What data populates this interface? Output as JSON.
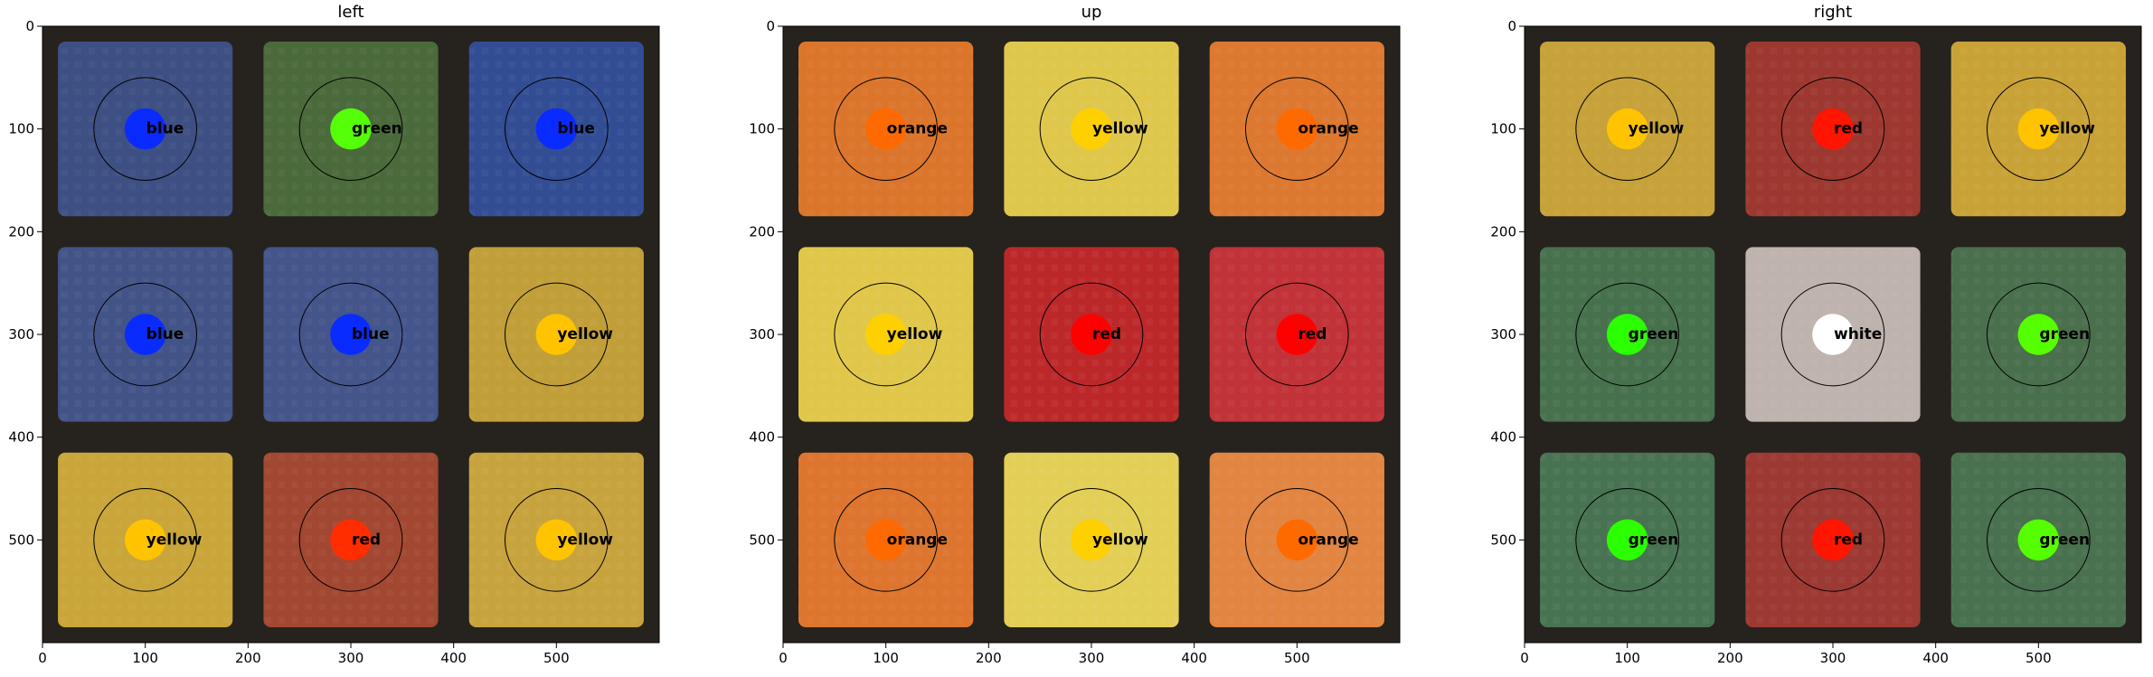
{
  "chart_data": [
    {
      "type": "heatmap",
      "title": "left",
      "xlim": [
        0,
        600
      ],
      "ylim": [
        600,
        0
      ],
      "xticks": [
        0,
        100,
        200,
        300,
        400,
        500
      ],
      "yticks": [
        0,
        100,
        200,
        300,
        400,
        500
      ],
      "stickers": [
        {
          "x": 100,
          "y": 100,
          "label": "blue",
          "fill": "#3f5288",
          "dot": "#0a2bff"
        },
        {
          "x": 300,
          "y": 100,
          "label": "green",
          "fill": "#4d6e3d",
          "dot": "#55ff0a"
        },
        {
          "x": 500,
          "y": 100,
          "label": "blue",
          "fill": "#34509a",
          "dot": "#0a2bff"
        },
        {
          "x": 100,
          "y": 300,
          "label": "blue",
          "fill": "#45578c",
          "dot": "#0a2bff"
        },
        {
          "x": 300,
          "y": 300,
          "label": "blue",
          "fill": "#465890",
          "dot": "#0a2bff"
        },
        {
          "x": 500,
          "y": 300,
          "label": "yellow",
          "fill": "#c9a53a",
          "dot": "#ffc300"
        },
        {
          "x": 100,
          "y": 500,
          "label": "yellow",
          "fill": "#d1ac3c",
          "dot": "#ffc300"
        },
        {
          "x": 300,
          "y": 500,
          "label": "red",
          "fill": "#a94a33",
          "dot": "#ff2d00"
        },
        {
          "x": 500,
          "y": 500,
          "label": "yellow",
          "fill": "#cfaa3f",
          "dot": "#ffc300"
        }
      ]
    },
    {
      "type": "heatmap",
      "title": "up",
      "xlim": [
        0,
        600
      ],
      "ylim": [
        600,
        0
      ],
      "xticks": [
        0,
        100,
        200,
        300,
        400,
        500
      ],
      "yticks": [
        0,
        100,
        200,
        300,
        400,
        500
      ],
      "stickers": [
        {
          "x": 100,
          "y": 100,
          "label": "orange",
          "fill": "#e47a2e",
          "dot": "#ff6a00"
        },
        {
          "x": 300,
          "y": 100,
          "label": "yellow",
          "fill": "#e8cf4e",
          "dot": "#ffd000"
        },
        {
          "x": 500,
          "y": 100,
          "label": "orange",
          "fill": "#e57d31",
          "dot": "#ff6a00"
        },
        {
          "x": 100,
          "y": 300,
          "label": "yellow",
          "fill": "#e9cf4d",
          "dot": "#ffd000"
        },
        {
          "x": 300,
          "y": 300,
          "label": "red",
          "fill": "#c42a2c",
          "dot": "#ff0000"
        },
        {
          "x": 500,
          "y": 300,
          "label": "red",
          "fill": "#c9353a",
          "dot": "#ff0000"
        },
        {
          "x": 100,
          "y": 500,
          "label": "orange",
          "fill": "#e67a30",
          "dot": "#ff6a00"
        },
        {
          "x": 300,
          "y": 500,
          "label": "yellow",
          "fill": "#ecd75a",
          "dot": "#ffd000"
        },
        {
          "x": 500,
          "y": 500,
          "label": "orange",
          "fill": "#ea8a44",
          "dot": "#ff6a00"
        }
      ]
    },
    {
      "type": "heatmap",
      "title": "right",
      "xlim": [
        0,
        600
      ],
      "ylim": [
        600,
        0
      ],
      "xticks": [
        0,
        100,
        200,
        300,
        400,
        500
      ],
      "yticks": [
        0,
        100,
        200,
        300,
        400,
        500
      ],
      "stickers": [
        {
          "x": 100,
          "y": 100,
          "label": "yellow",
          "fill": "#cfa83b",
          "dot": "#ffc300"
        },
        {
          "x": 300,
          "y": 100,
          "label": "red",
          "fill": "#a33a32",
          "dot": "#ff1500"
        },
        {
          "x": 500,
          "y": 100,
          "label": "yellow",
          "fill": "#d0a938",
          "dot": "#ffc300"
        },
        {
          "x": 100,
          "y": 300,
          "label": "green",
          "fill": "#4a7650",
          "dot": "#2bff00"
        },
        {
          "x": 300,
          "y": 300,
          "label": "white",
          "fill": "#c7bab5",
          "dot": "#ffffff"
        },
        {
          "x": 500,
          "y": 300,
          "label": "green",
          "fill": "#4d7450",
          "dot": "#55ff00"
        },
        {
          "x": 100,
          "y": 500,
          "label": "green",
          "fill": "#4b7855",
          "dot": "#2bff00"
        },
        {
          "x": 300,
          "y": 500,
          "label": "red",
          "fill": "#a23b35",
          "dot": "#ff1500"
        },
        {
          "x": 500,
          "y": 500,
          "label": "green",
          "fill": "#4c7552",
          "dot": "#55ff00"
        }
      ]
    }
  ]
}
